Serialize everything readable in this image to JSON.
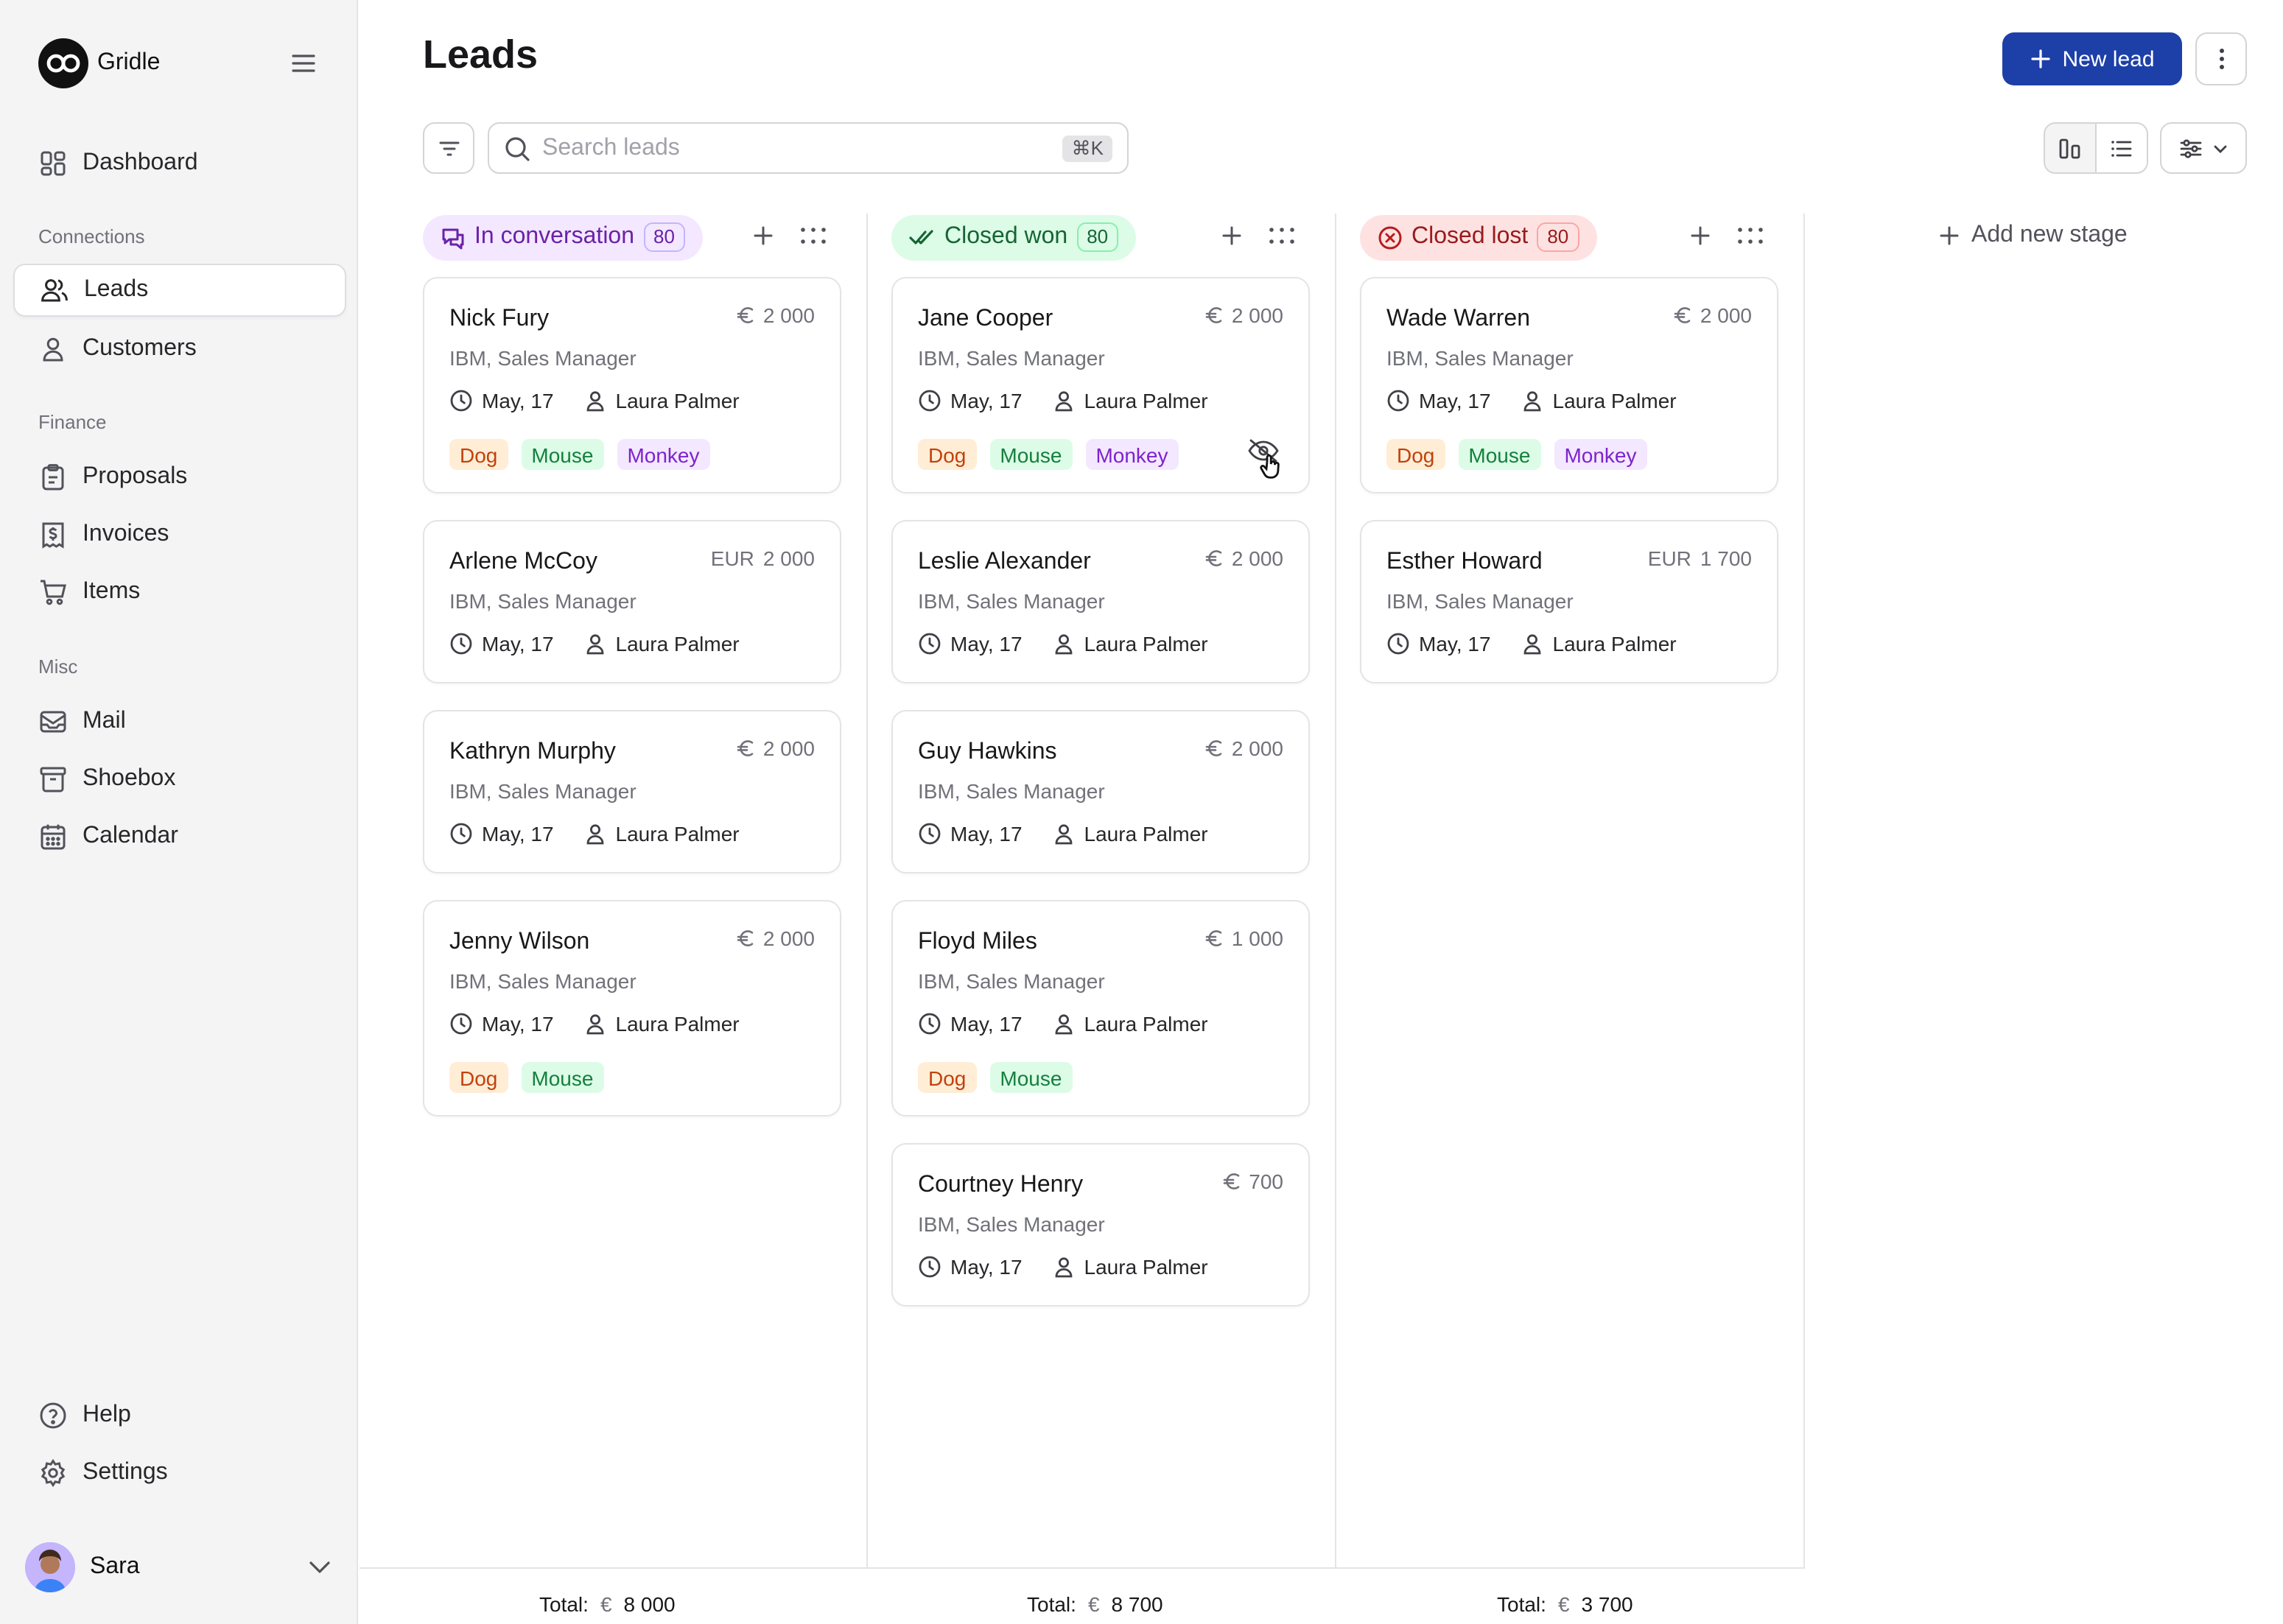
{
  "app": {
    "name": "Gridle"
  },
  "sidebar": {
    "dashboard": "Dashboard",
    "sections": {
      "connections": "Connections",
      "finance": "Finance",
      "misc": "Misc"
    },
    "leads": "Leads",
    "customers": "Customers",
    "proposals": "Proposals",
    "invoices": "Invoices",
    "items": "Items",
    "mail": "Mail",
    "shoebox": "Shoebox",
    "calendar": "Calendar",
    "help": "Help",
    "settings": "Settings",
    "user": "Sara"
  },
  "header": {
    "title": "Leads",
    "new_lead": "New lead",
    "search_placeholder": "Search leads",
    "search_shortcut": "⌘K",
    "add_stage": "Add new stage"
  },
  "stages": [
    {
      "name": "In conversation",
      "count": "80",
      "total_label": "Total:",
      "total_currency": "€",
      "total_value": "8 000",
      "cards": [
        {
          "name": "Nick Fury",
          "currency": "€",
          "amount": "2 000",
          "company": "IBM, Sales Manager",
          "date": "May, 17",
          "owner": "Laura Palmer",
          "tags": [
            "Dog",
            "Mouse",
            "Monkey"
          ]
        },
        {
          "name": "Arlene McCoy",
          "currency": "EUR",
          "amount": "2 000",
          "company": "IBM, Sales Manager",
          "date": "May, 17",
          "owner": "Laura Palmer",
          "tags": []
        },
        {
          "name": "Kathryn Murphy",
          "currency": "€",
          "amount": "2 000",
          "company": "IBM, Sales Manager",
          "date": "May, 17",
          "owner": "Laura Palmer",
          "tags": []
        },
        {
          "name": "Jenny Wilson",
          "currency": "€",
          "amount": "2 000",
          "company": "IBM, Sales Manager",
          "date": "May, 17",
          "owner": "Laura Palmer",
          "tags": [
            "Dog",
            "Mouse"
          ]
        }
      ]
    },
    {
      "name": "Closed won",
      "count": "80",
      "total_label": "Total:",
      "total_currency": "€",
      "total_value": "8 700",
      "cards": [
        {
          "name": "Jane Cooper",
          "currency": "€",
          "amount": "2 000",
          "company": "IBM, Sales Manager",
          "date": "May, 17",
          "owner": "Laura Palmer",
          "tags": [
            "Dog",
            "Mouse",
            "Monkey"
          ]
        },
        {
          "name": "Leslie Alexander",
          "currency": "€",
          "amount": "2 000",
          "company": "IBM, Sales Manager",
          "date": "May, 17",
          "owner": "Laura Palmer",
          "tags": []
        },
        {
          "name": "Guy Hawkins",
          "currency": "€",
          "amount": "2 000",
          "company": "IBM, Sales Manager",
          "date": "May, 17",
          "owner": "Laura Palmer",
          "tags": []
        },
        {
          "name": "Floyd Miles",
          "currency": "€",
          "amount": "1 000",
          "company": "IBM, Sales Manager",
          "date": "May, 17",
          "owner": "Laura Palmer",
          "tags": [
            "Dog",
            "Mouse"
          ]
        },
        {
          "name": "Courtney Henry",
          "currency": "€",
          "amount": "700",
          "company": "IBM, Sales Manager",
          "date": "May, 17",
          "owner": "Laura Palmer",
          "tags": []
        }
      ]
    },
    {
      "name": "Closed lost",
      "count": "80",
      "total_label": "Total:",
      "total_currency": "€",
      "total_value": "3 700",
      "cards": [
        {
          "name": "Wade Warren",
          "currency": "€",
          "amount": "2 000",
          "company": "IBM, Sales Manager",
          "date": "May, 17",
          "owner": "Laura Palmer",
          "tags": [
            "Dog",
            "Mouse",
            "Monkey"
          ]
        },
        {
          "name": "Esther Howard",
          "currency": "EUR",
          "amount": "1 700",
          "company": "IBM, Sales Manager",
          "date": "May, 17",
          "owner": "Laura Palmer",
          "tags": []
        }
      ]
    }
  ],
  "colors": {
    "primary": "#1d3fa8",
    "stage_conversation": "#f3e8ff",
    "stage_won": "#dcfce7",
    "stage_lost": "#fee2e2"
  }
}
